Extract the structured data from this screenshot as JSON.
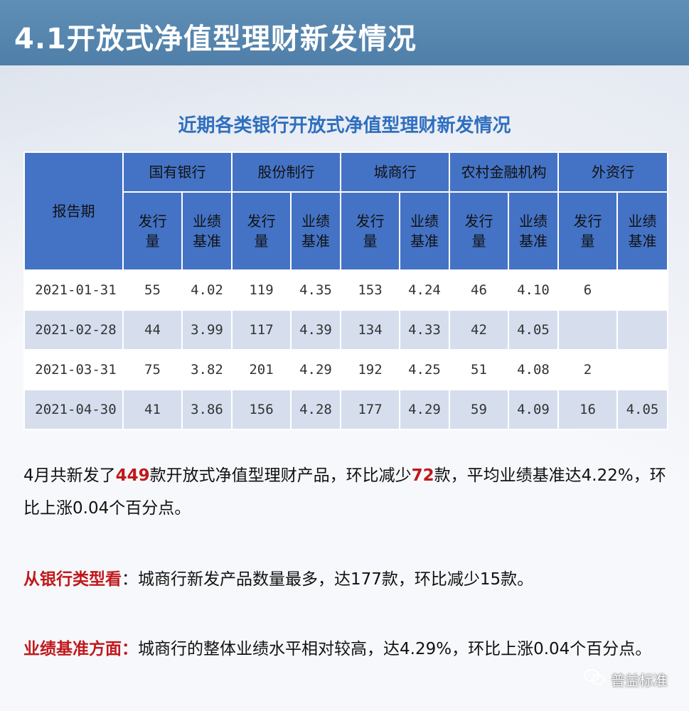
{
  "header": {
    "title": "4.1开放式净值型理财新发情况"
  },
  "table_title": "近期各类银行开放式净值型理财新发情况",
  "table": {
    "period_header": "报告期",
    "groups": [
      "国有银行",
      "股份制行",
      "城商行",
      "农村金融机构",
      "外资行"
    ],
    "sub_issue": "发行量",
    "sub_bench": "业绩基准",
    "rows": [
      {
        "date": "2021-01-31",
        "cells": [
          "55",
          "4.02",
          "119",
          "4.35",
          "153",
          "4.24",
          "46",
          "4.10",
          "6",
          ""
        ]
      },
      {
        "date": "2021-02-28",
        "cells": [
          "44",
          "3.99",
          "117",
          "4.39",
          "134",
          "4.33",
          "42",
          "4.05",
          "",
          ""
        ]
      },
      {
        "date": "2021-03-31",
        "cells": [
          "75",
          "3.82",
          "201",
          "4.29",
          "192",
          "4.25",
          "51",
          "4.08",
          "2",
          ""
        ]
      },
      {
        "date": "2021-04-30",
        "cells": [
          "41",
          "3.86",
          "156",
          "4.28",
          "177",
          "4.29",
          "59",
          "4.09",
          "16",
          "4.05"
        ]
      }
    ]
  },
  "summary": {
    "p1_a": "4月共新发了",
    "p1_num1": "449",
    "p1_b": "款开放式净值型理财产品，环比减少",
    "p1_num2": "72",
    "p1_c": "款，平均业绩基准达4.22%，环比上涨0.04个百分点。",
    "p2_label": "从银行类型看",
    "p2_text": "：城商行新发产品数量最多，达177款，环比减少15款。",
    "p3_label": "业绩基准方面：",
    "p3_text": "城商行的整体业绩水平相对较高，达4.29%，环比上涨0.04个百分点。"
  },
  "watermark": {
    "text": "普益标准",
    "icon": "wechat-icon"
  },
  "colors": {
    "header_bg": "#4f7ea8",
    "table_header": "#4473c5",
    "highlight": "#c0191c",
    "subtitle": "#2f6fbf"
  }
}
